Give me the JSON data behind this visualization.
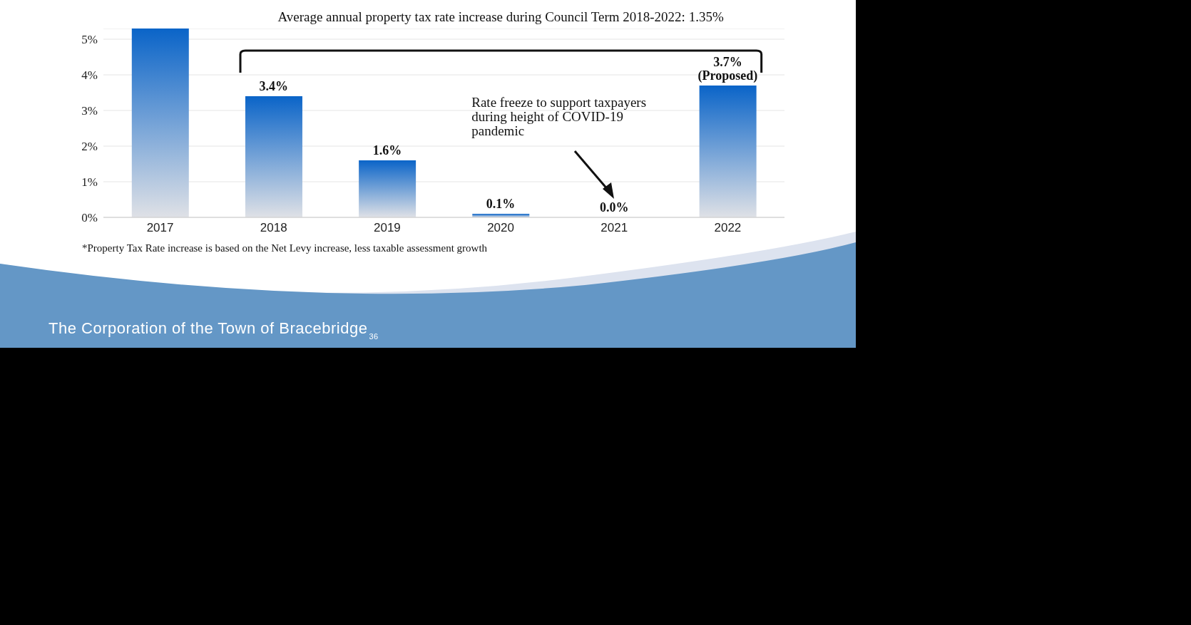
{
  "chart_data": {
    "type": "bar",
    "categories": [
      "2017",
      "2018",
      "2019",
      "2020",
      "2021",
      "2022"
    ],
    "values": [
      5.3,
      3.4,
      1.6,
      0.1,
      0.0,
      3.7
    ],
    "color": "#0a64c8",
    "value_labels": [
      null,
      "3.4%",
      "1.6%",
      "0.1%",
      "0.0%",
      "3.7%\n(Proposed)"
    ],
    "ylim": [
      0,
      5.3
    ],
    "yticks": [
      {
        "value": 0,
        "label": "0%"
      },
      {
        "value": 1,
        "label": "1%"
      },
      {
        "value": 2,
        "label": "2%"
      },
      {
        "value": 3,
        "label": "3%"
      },
      {
        "value": 4,
        "label": "4%"
      },
      {
        "value": 5,
        "label": "5%"
      }
    ],
    "grid": "y",
    "legend": false,
    "annotations": [
      "Average annual property tax rate increase during Council Term 2018-2022: 1.35%",
      "Rate freeze to support taxpayers during height of COVID-19 pandemic",
      "*Property Tax Rate increase is based on the Net Levy increase, less taxable assessment growth",
      "The Corporation of the Town of Bracebridge",
      "36"
    ]
  }
}
